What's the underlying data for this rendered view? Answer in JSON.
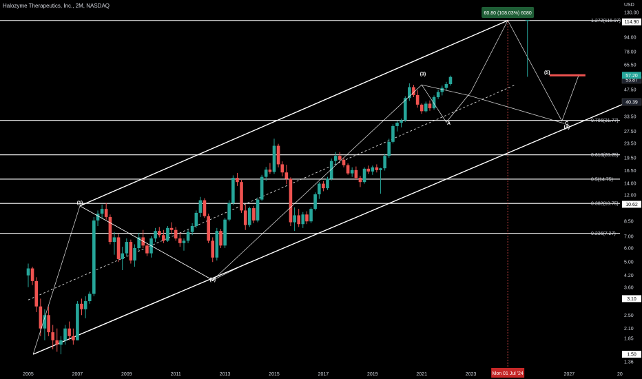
{
  "header": {
    "title": "Halozyme Therapeutics, Inc., 2M, NASDAQ",
    "currency": "USD"
  },
  "chart_data": {
    "type": "candlestick",
    "scale": "log",
    "price_axis_ticks": [
      "130.00",
      "114.90",
      "94.00",
      "78.00",
      "65.50",
      "53.87",
      "47.50",
      "40.39",
      "33.50",
      "27.50",
      "23.50",
      "19.50",
      "16.50",
      "14.00",
      "12.00",
      "10.62",
      "8.50",
      "7.00",
      "6.00",
      "5.00",
      "4.20",
      "3.60",
      "3.10",
      "2.50",
      "2.10",
      "1.85",
      "1.50",
      "1.36"
    ],
    "time_axis_ticks": [
      "2005",
      "2007",
      "2009",
      "2011",
      "2013",
      "2015",
      "2017",
      "2019",
      "2021",
      "2023",
      "Mon 01 Jul '24",
      "2027",
      "20"
    ],
    "ohlc": [
      [
        2005.0,
        4.2,
        4.9,
        3.6,
        4.6
      ],
      [
        2005.17,
        4.6,
        4.7,
        3.7,
        3.9
      ],
      [
        2005.33,
        3.9,
        4.1,
        2.6,
        2.8
      ],
      [
        2005.5,
        2.8,
        3.1,
        1.9,
        2.1
      ],
      [
        2005.67,
        2.1,
        2.7,
        1.8,
        2.5
      ],
      [
        2005.83,
        2.5,
        2.8,
        1.9,
        2.0
      ],
      [
        2006.0,
        2.0,
        2.2,
        1.6,
        1.8
      ],
      [
        2006.17,
        1.8,
        2.1,
        1.55,
        1.7
      ],
      [
        2006.33,
        1.7,
        1.9,
        1.5,
        1.8
      ],
      [
        2006.5,
        1.8,
        2.2,
        1.7,
        2.1
      ],
      [
        2006.67,
        2.1,
        2.3,
        1.8,
        1.9
      ],
      [
        2006.83,
        1.9,
        2.1,
        1.7,
        1.8
      ],
      [
        2007.0,
        1.8,
        3.0,
        1.8,
        2.9
      ],
      [
        2007.17,
        2.9,
        3.1,
        2.5,
        2.7
      ],
      [
        2007.33,
        2.7,
        3.2,
        2.4,
        3.0
      ],
      [
        2007.5,
        3.0,
        3.4,
        2.9,
        3.3
      ],
      [
        2007.67,
        3.3,
        9.0,
        3.2,
        8.6
      ],
      [
        2007.83,
        8.6,
        9.8,
        8.0,
        9.4
      ],
      [
        2008.0,
        9.4,
        10.6,
        8.8,
        10.0
      ],
      [
        2008.17,
        10.0,
        10.8,
        8.7,
        9.0
      ],
      [
        2008.33,
        9.0,
        9.3,
        6.3,
        6.5
      ],
      [
        2008.5,
        6.5,
        7.4,
        5.5,
        6.9
      ],
      [
        2008.67,
        6.9,
        7.2,
        5.0,
        5.2
      ],
      [
        2008.83,
        5.2,
        6.1,
        4.5,
        5.6
      ],
      [
        2009.0,
        5.6,
        6.8,
        5.4,
        6.5
      ],
      [
        2009.17,
        6.5,
        6.7,
        4.9,
        5.1
      ],
      [
        2009.33,
        5.1,
        6.3,
        4.7,
        6.0
      ],
      [
        2009.5,
        6.0,
        7.3,
        5.8,
        6.9
      ],
      [
        2009.67,
        6.9,
        7.6,
        6.0,
        6.2
      ],
      [
        2009.83,
        6.2,
        6.4,
        5.4,
        5.6
      ],
      [
        2010.0,
        5.6,
        7.0,
        5.3,
        6.8
      ],
      [
        2010.17,
        6.8,
        7.8,
        6.5,
        7.5
      ],
      [
        2010.33,
        7.5,
        7.9,
        6.9,
        7.1
      ],
      [
        2010.5,
        7.1,
        7.6,
        6.4,
        6.6
      ],
      [
        2010.67,
        6.6,
        8.0,
        6.5,
        7.8
      ],
      [
        2010.83,
        7.8,
        8.4,
        7.2,
        7.6
      ],
      [
        2011.0,
        7.6,
        7.9,
        6.6,
        6.8
      ],
      [
        2011.17,
        6.8,
        7.3,
        6.1,
        6.4
      ],
      [
        2011.33,
        6.4,
        6.8,
        5.8,
        6.6
      ],
      [
        2011.5,
        6.6,
        7.6,
        6.4,
        7.4
      ],
      [
        2011.67,
        7.4,
        8.3,
        7.1,
        8.0
      ],
      [
        2011.83,
        8.0,
        9.8,
        7.8,
        9.5
      ],
      [
        2012.0,
        9.5,
        11.7,
        9.0,
        11.2
      ],
      [
        2012.17,
        11.2,
        11.5,
        8.9,
        9.1
      ],
      [
        2012.33,
        9.1,
        9.4,
        6.4,
        6.6
      ],
      [
        2012.5,
        6.6,
        6.9,
        5.0,
        5.3
      ],
      [
        2012.67,
        5.3,
        7.8,
        5.1,
        7.5
      ],
      [
        2012.83,
        7.5,
        7.7,
        6.0,
        6.2
      ],
      [
        2013.0,
        6.2,
        8.9,
        6.0,
        8.7
      ],
      [
        2013.17,
        8.7,
        11.2,
        8.5,
        10.8
      ],
      [
        2013.33,
        10.8,
        15.5,
        10.5,
        15.0
      ],
      [
        2013.5,
        15.0,
        16.0,
        13.5,
        14.2
      ],
      [
        2013.67,
        14.2,
        14.6,
        9.5,
        9.8
      ],
      [
        2013.83,
        9.8,
        10.6,
        7.6,
        8.1
      ],
      [
        2014.0,
        8.1,
        10.3,
        7.9,
        10.1
      ],
      [
        2014.17,
        10.1,
        10.4,
        8.3,
        8.6
      ],
      [
        2014.33,
        8.6,
        11.6,
        8.4,
        11.3
      ],
      [
        2014.5,
        11.3,
        15.6,
        11.1,
        15.2
      ],
      [
        2014.67,
        15.2,
        17.3,
        14.4,
        16.7
      ],
      [
        2014.83,
        16.7,
        18.2,
        15.8,
        16.2
      ],
      [
        2015.0,
        16.2,
        25.0,
        15.8,
        22.8
      ],
      [
        2015.17,
        22.8,
        23.4,
        17.2,
        17.9
      ],
      [
        2015.33,
        17.9,
        18.6,
        15.3,
        16.1
      ],
      [
        2015.5,
        16.1,
        17.8,
        13.8,
        14.8
      ],
      [
        2015.67,
        14.8,
        15.1,
        8.0,
        8.4
      ],
      [
        2015.83,
        8.4,
        10.2,
        7.5,
        9.2
      ],
      [
        2016.0,
        9.2,
        10.0,
        7.9,
        8.2
      ],
      [
        2016.17,
        8.2,
        9.6,
        7.8,
        9.3
      ],
      [
        2016.33,
        9.3,
        9.7,
        8.2,
        8.5
      ],
      [
        2016.5,
        8.5,
        10.2,
        8.3,
        10.0
      ],
      [
        2016.67,
        10.0,
        12.4,
        9.8,
        12.1
      ],
      [
        2016.83,
        12.1,
        14.2,
        11.4,
        13.9
      ],
      [
        2017.0,
        13.9,
        14.4,
        12.6,
        13.1
      ],
      [
        2017.17,
        13.1,
        15.2,
        12.8,
        14.8
      ],
      [
        2017.33,
        14.8,
        19.3,
        14.5,
        18.7
      ],
      [
        2017.5,
        18.7,
        21.0,
        17.8,
        20.0
      ],
      [
        2017.67,
        20.0,
        21.0,
        18.5,
        19.0
      ],
      [
        2017.83,
        19.0,
        19.6,
        17.2,
        17.7
      ],
      [
        2018.0,
        17.7,
        18.1,
        15.6,
        15.9
      ],
      [
        2018.17,
        15.9,
        17.2,
        15.2,
        16.6
      ],
      [
        2018.33,
        16.6,
        17.4,
        14.6,
        15.0
      ],
      [
        2018.5,
        15.0,
        15.4,
        13.3,
        14.2
      ],
      [
        2018.67,
        14.2,
        17.2,
        13.9,
        16.9
      ],
      [
        2018.83,
        16.9,
        17.6,
        15.8,
        16.3
      ],
      [
        2019.0,
        16.3,
        17.6,
        15.6,
        17.2
      ],
      [
        2019.17,
        17.2,
        17.9,
        16.1,
        16.6
      ],
      [
        2019.33,
        16.6,
        17.1,
        12.2,
        17.0
      ],
      [
        2019.5,
        17.0,
        20.5,
        16.5,
        20.0
      ],
      [
        2019.67,
        20.0,
        25.0,
        19.5,
        24.0
      ],
      [
        2019.83,
        24.0,
        30.2,
        23.5,
        29.5
      ],
      [
        2020.0,
        29.5,
        31.5,
        27.5,
        30.8
      ],
      [
        2020.17,
        30.8,
        32.5,
        29.0,
        31.8
      ],
      [
        2020.33,
        31.8,
        43.5,
        31.2,
        42.5
      ],
      [
        2020.5,
        42.5,
        51.5,
        41.0,
        49.0
      ],
      [
        2020.67,
        49.0,
        50.5,
        43.0,
        44.2
      ],
      [
        2020.83,
        44.2,
        47.0,
        37.5,
        39.0
      ],
      [
        2021.0,
        39.0,
        39.6,
        34.6,
        35.8
      ],
      [
        2021.17,
        35.8,
        40.6,
        35.2,
        39.5
      ],
      [
        2021.33,
        39.5,
        41.2,
        36.0,
        37.2
      ],
      [
        2021.5,
        37.2,
        44.0,
        36.5,
        43.0
      ],
      [
        2021.67,
        43.0,
        47.5,
        42.0,
        46.0
      ],
      [
        2021.83,
        46.0,
        50.0,
        44.0,
        48.5
      ],
      [
        2022.0,
        48.5,
        52.5,
        47.0,
        51.0
      ],
      [
        2022.17,
        51.0,
        57.0,
        50.0,
        56.0
      ]
    ],
    "fib_levels": [
      {
        "label": "1.272(116.97)",
        "value": 116.97
      },
      {
        "label": "0.786(31.77)",
        "value": 31.77
      },
      {
        "label": "0.618(20.25)",
        "value": 20.25
      },
      {
        "label": "0.5(14.75)",
        "value": 14.75
      },
      {
        "label": "0.382(10.75)",
        "value": 10.75
      },
      {
        "label": "0.236(7.27)",
        "value": 7.27
      }
    ],
    "wave_labels": [
      {
        "label": "(1)",
        "t": 2007.1,
        "p": 10.6
      },
      {
        "label": "(2)",
        "t": 2012.5,
        "p": 3.9
      },
      {
        "label": "(3)",
        "t": 2021.05,
        "p": 57.0
      },
      {
        "label": "A",
        "t": 2022.1,
        "p": 30.0
      },
      {
        "label": "(5)",
        "t": 2026.1,
        "p": 58.0
      },
      {
        "label": "C",
        "t": 2026.9,
        "p": 30.0
      },
      {
        "label": "(4)",
        "t": 2026.9,
        "p": 28.5
      }
    ],
    "projection_box": {
      "text": "60.80 (108.03%) 6080"
    },
    "price_badges": [
      {
        "text": "114.90",
        "value": 114.9,
        "style": "white"
      },
      {
        "text": "53.87",
        "value": 53.87,
        "style": "dark"
      },
      {
        "text": "40.39",
        "value": 40.39,
        "style": "dark"
      },
      {
        "text": "10.62",
        "value": 10.62,
        "style": "white"
      },
      {
        "text": "3.10",
        "value": 3.1,
        "style": "white"
      },
      {
        "text": "1.50",
        "value": 1.5,
        "style": "white"
      }
    ],
    "current_price_badge": {
      "text": "57.20",
      "value": 57.2
    },
    "date_badge": {
      "text": "Mon 01 Jul '24",
      "t": 2024.5
    },
    "colors": {
      "up": "#26a69a",
      "down": "#ef5350",
      "line": "#ffffff",
      "background": "#000000"
    }
  }
}
